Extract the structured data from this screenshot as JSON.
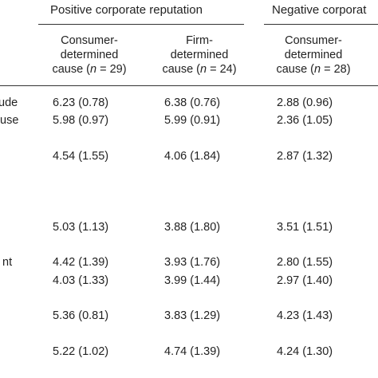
{
  "groups": {
    "positive": "Positive corporate reputation",
    "negative": "Negative corporat"
  },
  "columns": [
    {
      "line1": "Consumer-",
      "line2": "determined",
      "line3_pre": "cause (",
      "n_sym": "n",
      "line3_post": " = 29)"
    },
    {
      "line1": "Firm-",
      "line2": "determined",
      "line3_pre": "cause (",
      "n_sym": "n",
      "line3_post": " = 24)"
    },
    {
      "line1": "Consumer-",
      "line2": "determined",
      "line3_pre": "cause (",
      "n_sym": "n",
      "line3_post": " = 28)"
    }
  ],
  "row_labels": [
    "ude",
    "use",
    "nt"
  ],
  "rows": [
    [
      "6.23 (0.78)",
      "6.38 (0.76)",
      "2.88 (0.96)"
    ],
    [
      "5.98 (0.97)",
      "5.99 (0.91)",
      "2.36 (1.05)"
    ],
    [
      "4.54 (1.55)",
      "4.06 (1.84)",
      "2.87 (1.32)"
    ],
    [
      "5.03 (1.13)",
      "3.88 (1.80)",
      "3.51 (1.51)"
    ],
    [
      "4.42 (1.39)",
      "3.93 (1.76)",
      "2.80 (1.55)"
    ],
    [
      "4.03 (1.33)",
      "3.99 (1.44)",
      "2.97 (1.40)"
    ],
    [
      "5.36 (0.81)",
      "3.83 (1.29)",
      "4.23 (1.43)"
    ],
    [
      "5.22 (1.02)",
      "4.74 (1.39)",
      "4.24 (1.30)"
    ]
  ]
}
